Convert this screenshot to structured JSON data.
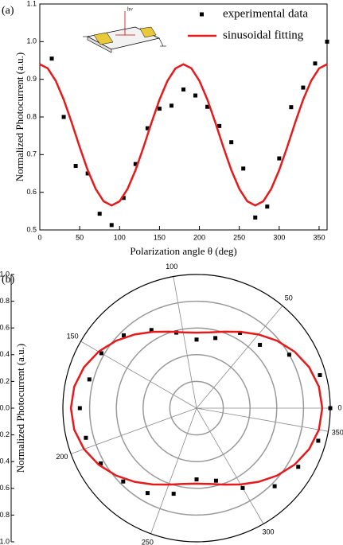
{
  "chart_data": [
    {
      "type": "line",
      "panel_label": "(a)",
      "x_label": "Polarization angle θ (deg)",
      "y_label": "Normalized Photocurrent (a.u.)",
      "inset_label": "hν",
      "xlim": [
        0,
        360
      ],
      "xticks": [
        0,
        50,
        100,
        150,
        200,
        250,
        300,
        350
      ],
      "ylim": [
        0.5,
        1.1
      ],
      "yticks": [
        0.5,
        0.6,
        0.7,
        0.8,
        0.9,
        {
          "value": 1,
          "label": "1.0"
        },
        1.1
      ],
      "legend": "upper right",
      "series": [
        {
          "name": "experimental data",
          "color": "#000000",
          "mode": "markers",
          "x": [
            15,
            30,
            45,
            60,
            75,
            90,
            105,
            120,
            135,
            150,
            165,
            180,
            195,
            210,
            225,
            240,
            255,
            270,
            285,
            300,
            315,
            330,
            345,
            360
          ],
          "values": [
            0.955,
            0.8,
            0.67,
            0.65,
            0.543,
            0.513,
            0.585,
            0.675,
            0.77,
            0.822,
            0.83,
            0.873,
            0.857,
            0.827,
            0.776,
            0.733,
            0.663,
            0.533,
            0.562,
            0.69,
            0.826,
            0.878,
            0.942,
            1.0
          ]
        },
        {
          "name": "sinusoidal fitting",
          "color": "#e8191b",
          "mode": "line",
          "x": [
            0,
            10,
            20,
            30,
            40,
            50,
            60,
            70,
            80,
            90,
            100,
            110,
            120,
            130,
            140,
            150,
            160,
            170,
            180,
            190,
            200,
            210,
            220,
            230,
            240,
            250,
            260,
            270,
            280,
            290,
            300,
            310,
            320,
            330,
            340,
            350,
            360
          ],
          "values": [
            0.94,
            0.929,
            0.896,
            0.846,
            0.785,
            0.72,
            0.659,
            0.609,
            0.576,
            0.565,
            0.576,
            0.609,
            0.659,
            0.72,
            0.785,
            0.846,
            0.896,
            0.929,
            0.94,
            0.929,
            0.896,
            0.846,
            0.785,
            0.72,
            0.659,
            0.609,
            0.576,
            0.565,
            0.576,
            0.609,
            0.659,
            0.72,
            0.785,
            0.846,
            0.896,
            0.929,
            0.94
          ]
        }
      ]
    },
    {
      "type": "polar",
      "panel_label": "(b)",
      "y_label": "Normalized Photocurrent (a.u.)",
      "rlim": [
        0,
        1
      ],
      "rticks": [
        {
          "value": 0,
          "label": "0.0"
        },
        0.2,
        0.4,
        0.6,
        0.8,
        {
          "value": 1,
          "label": "1.0"
        }
      ],
      "thetaticks": [
        0,
        50,
        100,
        150,
        200,
        250,
        300,
        350
      ],
      "series": [
        {
          "name": "experimental data",
          "color": "#000000",
          "mode": "markers",
          "theta": [
            15,
            30,
            45,
            60,
            75,
            90,
            105,
            120,
            135,
            150,
            165,
            180,
            195,
            210,
            225,
            240,
            255,
            270,
            285,
            300,
            315,
            330,
            345,
            360
          ],
          "r": [
            0.955,
            0.8,
            0.67,
            0.65,
            0.543,
            0.513,
            0.585,
            0.675,
            0.77,
            0.822,
            0.83,
            0.873,
            0.857,
            0.827,
            0.776,
            0.733,
            0.663,
            0.533,
            0.562,
            0.69,
            0.826,
            0.878,
            0.942,
            1.0
          ]
        },
        {
          "name": "sinusoidal fitting",
          "color": "#e8191b",
          "mode": "line",
          "theta": [
            0,
            10,
            20,
            30,
            40,
            50,
            60,
            70,
            80,
            90,
            100,
            110,
            120,
            130,
            140,
            150,
            160,
            170,
            180,
            190,
            200,
            210,
            220,
            230,
            240,
            250,
            260,
            270,
            280,
            290,
            300,
            310,
            320,
            330,
            340,
            350,
            360
          ],
          "r": [
            0.94,
            0.929,
            0.896,
            0.846,
            0.785,
            0.72,
            0.659,
            0.609,
            0.576,
            0.565,
            0.576,
            0.609,
            0.659,
            0.72,
            0.785,
            0.846,
            0.896,
            0.929,
            0.94,
            0.929,
            0.896,
            0.846,
            0.785,
            0.72,
            0.659,
            0.609,
            0.576,
            0.565,
            0.576,
            0.609,
            0.659,
            0.72,
            0.785,
            0.846,
            0.896,
            0.929,
            0.94
          ]
        }
      ]
    }
  ]
}
